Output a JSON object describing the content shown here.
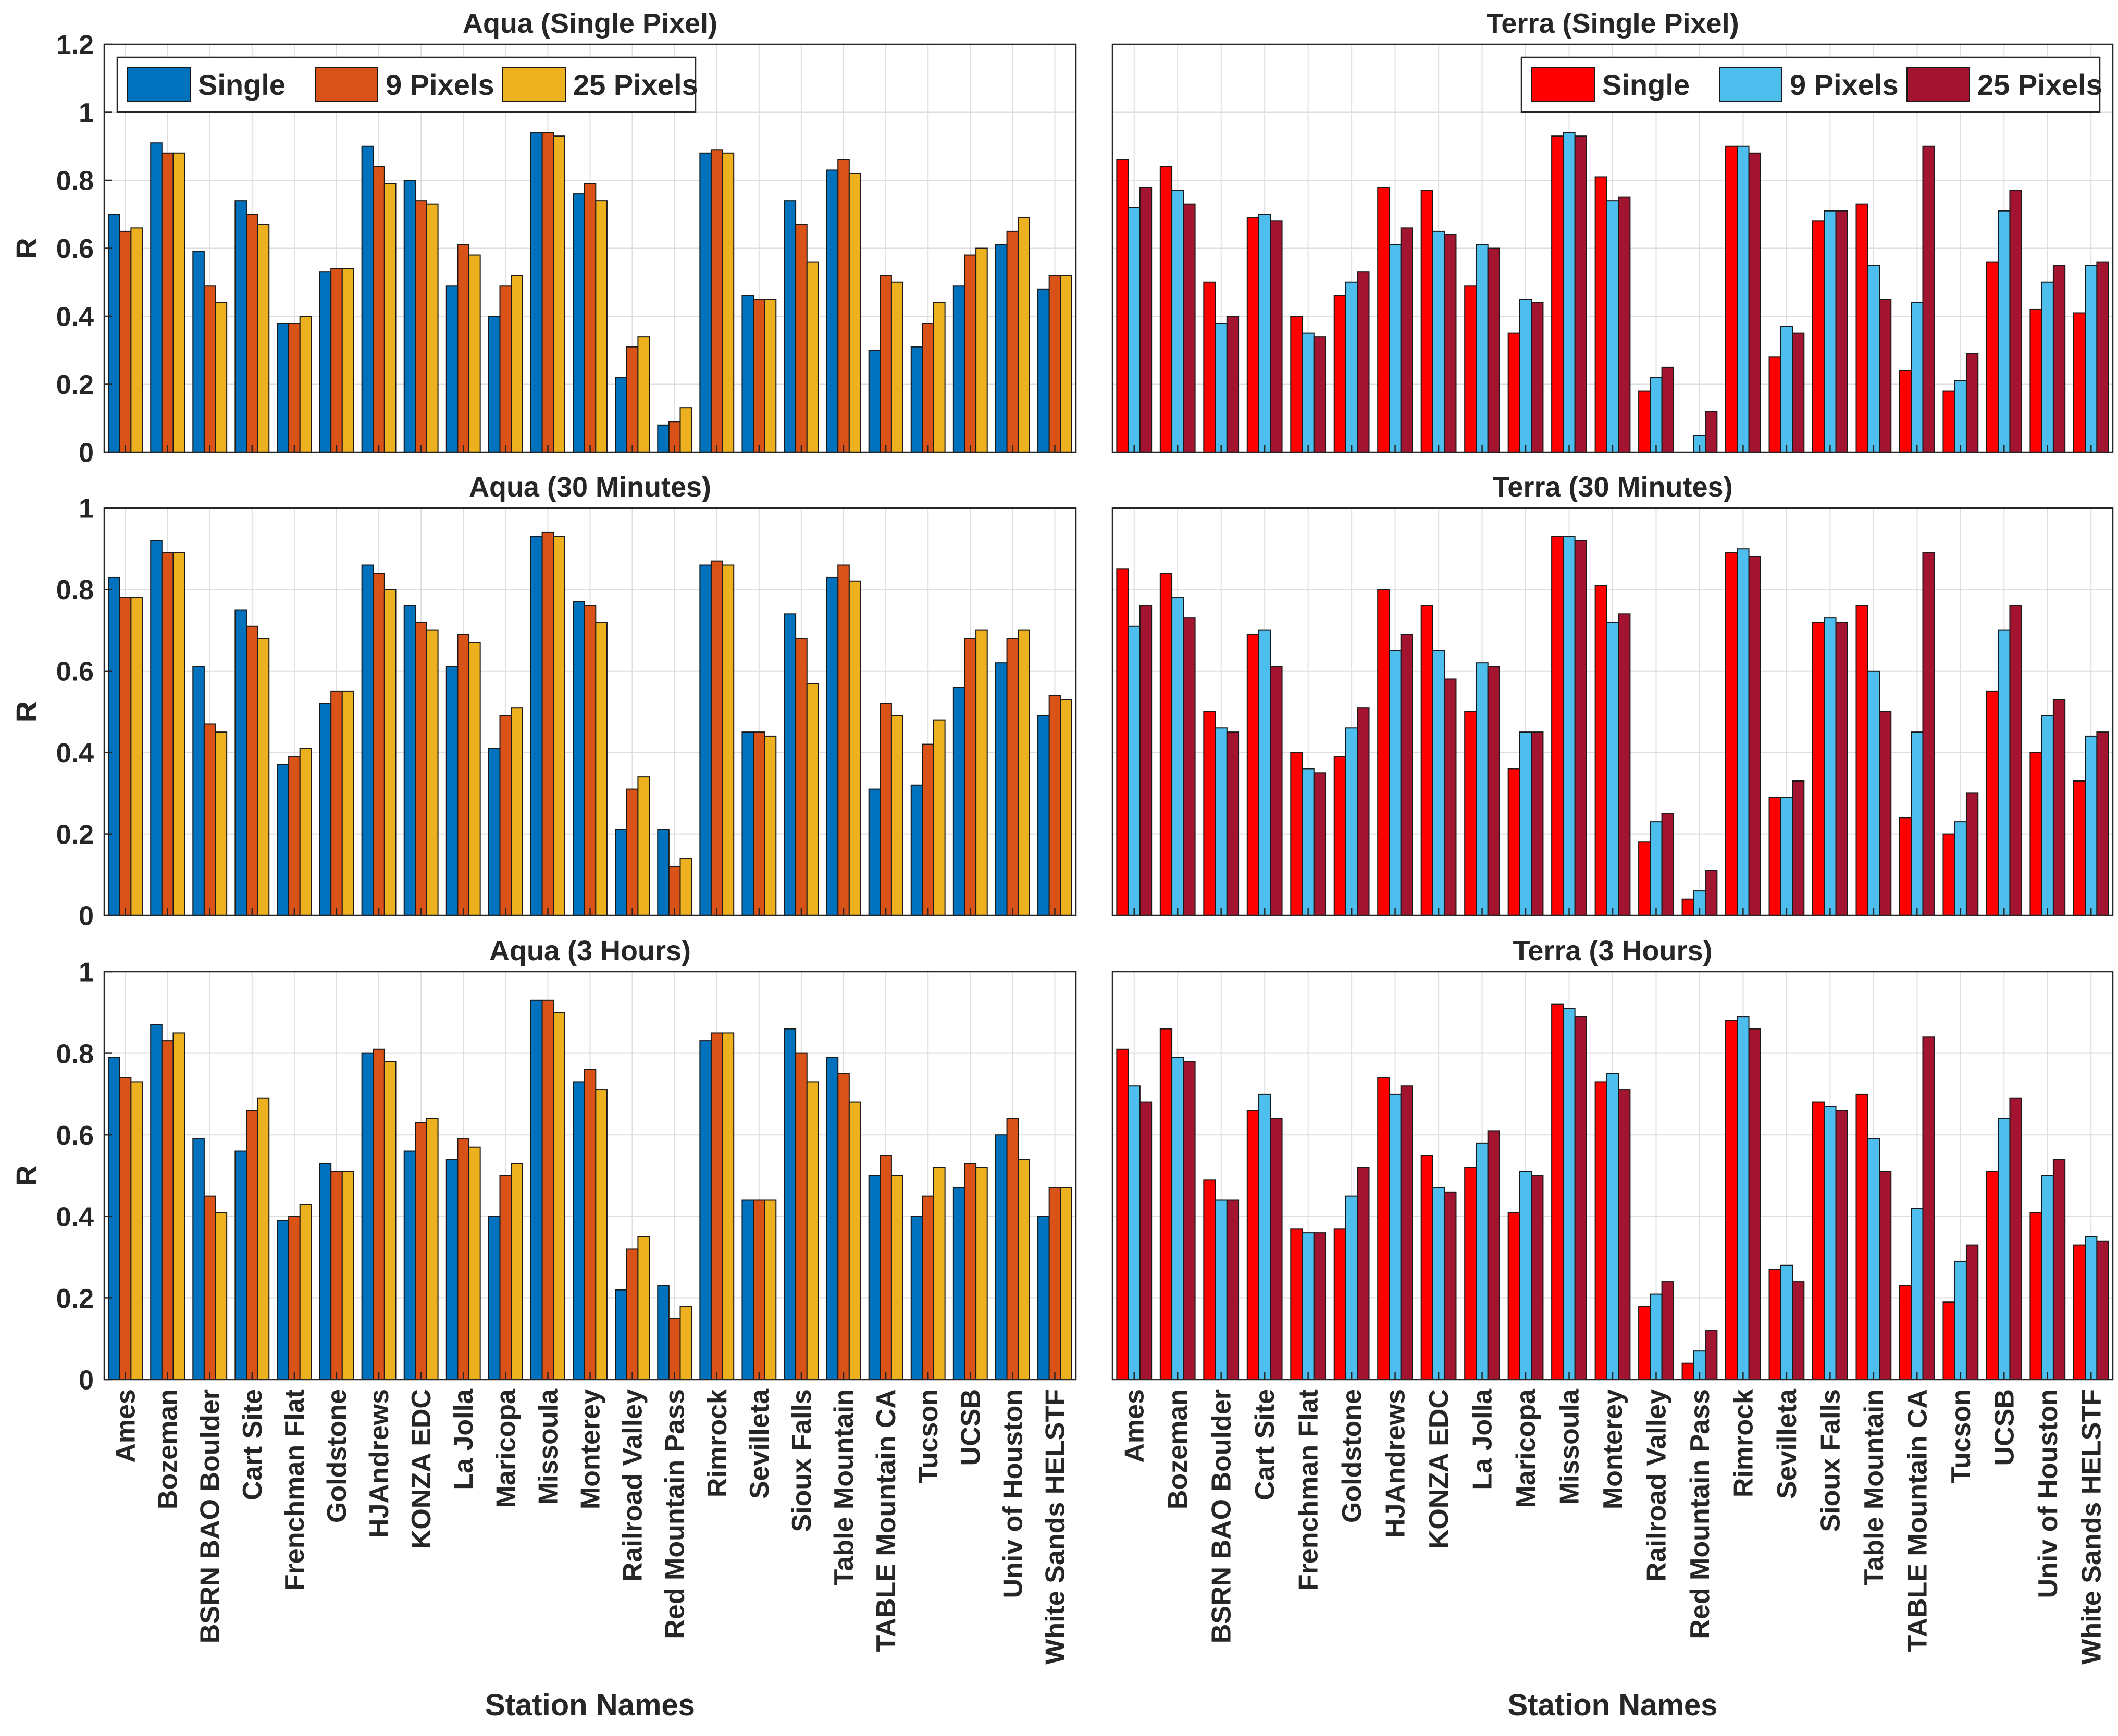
{
  "stations": [
    "Ames",
    "Bozeman",
    "BSRN BAO Boulder",
    "Cart Site",
    "Frenchman Flat",
    "Goldstone",
    "HJAndrews",
    "KONZA EDC",
    "La Jolla",
    "Maricopa",
    "Missoula",
    "Monterey",
    "Railroad Valley",
    "Red Mountain Pass",
    "Rimrock",
    "Sevilleta",
    "Sioux Falls",
    "Table Mountain",
    "TABLE Mountain CA",
    "Tucson",
    "UCSB",
    "Univ of Houston",
    "White Sands HELSTF"
  ],
  "x_axis_label": "Station Names",
  "y_axis_label": "R",
  "chart_data": [
    {
      "type": "bar",
      "title": "Aqua (Single Pixel)",
      "ylabel": "R",
      "xlabel": "",
      "ylim": [
        0,
        1.2
      ],
      "yticks": [
        0,
        0.2,
        0.4,
        0.6,
        0.8,
        1,
        1.2
      ],
      "grid": true,
      "legend": "top-left",
      "categories": [
        "Ames",
        "Bozeman",
        "BSRN BAO Boulder",
        "Cart Site",
        "Frenchman Flat",
        "Goldstone",
        "HJAndrews",
        "KONZA EDC",
        "La Jolla",
        "Maricopa",
        "Missoula",
        "Monterey",
        "Railroad Valley",
        "Red Mountain Pass",
        "Rimrock",
        "Sevilleta",
        "Sioux Falls",
        "Table Mountain",
        "TABLE Mountain CA",
        "Tucson",
        "UCSB",
        "Univ of Houston",
        "White Sands HELSTF"
      ],
      "series": [
        {
          "name": "Single",
          "color": "#0072BD",
          "values": [
            0.7,
            0.91,
            0.59,
            0.74,
            0.38,
            0.53,
            0.9,
            0.8,
            0.49,
            0.4,
            0.94,
            0.76,
            0.22,
            0.08,
            0.88,
            0.46,
            0.74,
            0.83,
            0.3,
            0.31,
            0.49,
            0.61,
            0.48
          ]
        },
        {
          "name": "9 Pixels",
          "color": "#D95319",
          "values": [
            0.65,
            0.88,
            0.49,
            0.7,
            0.38,
            0.54,
            0.84,
            0.74,
            0.61,
            0.49,
            0.94,
            0.79,
            0.31,
            0.09,
            0.89,
            0.45,
            0.67,
            0.86,
            0.52,
            0.38,
            0.58,
            0.65,
            0.52
          ]
        },
        {
          "name": "25 Pixels",
          "color": "#EDB120",
          "values": [
            0.66,
            0.88,
            0.44,
            0.67,
            0.4,
            0.54,
            0.79,
            0.73,
            0.58,
            0.52,
            0.93,
            0.74,
            0.34,
            0.13,
            0.88,
            0.45,
            0.56,
            0.82,
            0.5,
            0.44,
            0.6,
            0.69,
            0.52
          ]
        }
      ]
    },
    {
      "type": "bar",
      "title": "Terra (Single Pixel)",
      "ylabel": "",
      "xlabel": "",
      "ylim": [
        0,
        1.2
      ],
      "yticks": [],
      "grid": true,
      "legend": "top-right",
      "categories": [
        "Ames",
        "Bozeman",
        "BSRN BAO Boulder",
        "Cart Site",
        "Frenchman Flat",
        "Goldstone",
        "HJAndrews",
        "KONZA EDC",
        "La Jolla",
        "Maricopa",
        "Missoula",
        "Monterey",
        "Railroad Valley",
        "Red Mountain Pass",
        "Rimrock",
        "Sevilleta",
        "Sioux Falls",
        "Table Mountain",
        "TABLE Mountain CA",
        "Tucson",
        "UCSB",
        "Univ of Houston",
        "White Sands HELSTF"
      ],
      "series": [
        {
          "name": "Single",
          "color": "#FF0000",
          "values": [
            0.86,
            0.84,
            0.5,
            0.69,
            0.4,
            0.46,
            0.78,
            0.77,
            0.49,
            0.35,
            0.93,
            0.81,
            0.18,
            0.0,
            0.9,
            0.28,
            0.68,
            0.73,
            0.24,
            0.18,
            0.56,
            0.42,
            0.41
          ]
        },
        {
          "name": "9 Pixels",
          "color": "#4DBEEE",
          "values": [
            0.72,
            0.77,
            0.38,
            0.7,
            0.35,
            0.5,
            0.61,
            0.65,
            0.61,
            0.45,
            0.94,
            0.74,
            0.22,
            0.05,
            0.9,
            0.37,
            0.71,
            0.55,
            0.44,
            0.21,
            0.71,
            0.5,
            0.55
          ]
        },
        {
          "name": "25 Pixels",
          "color": "#A2142F",
          "values": [
            0.78,
            0.73,
            0.4,
            0.68,
            0.34,
            0.53,
            0.66,
            0.64,
            0.6,
            0.44,
            0.93,
            0.75,
            0.25,
            0.12,
            0.88,
            0.35,
            0.71,
            0.45,
            0.9,
            0.29,
            0.77,
            0.55,
            0.56
          ]
        }
      ]
    },
    {
      "type": "bar",
      "title": "Aqua (30 Minutes)",
      "ylabel": "R",
      "xlabel": "",
      "ylim": [
        0,
        1
      ],
      "yticks": [
        0,
        0.2,
        0.4,
        0.6,
        0.8,
        1
      ],
      "grid": true,
      "categories": [
        "Ames",
        "Bozeman",
        "BSRN BAO Boulder",
        "Cart Site",
        "Frenchman Flat",
        "Goldstone",
        "HJAndrews",
        "KONZA EDC",
        "La Jolla",
        "Maricopa",
        "Missoula",
        "Monterey",
        "Railroad Valley",
        "Red Mountain Pass",
        "Rimrock",
        "Sevilleta",
        "Sioux Falls",
        "Table Mountain",
        "TABLE Mountain CA",
        "Tucson",
        "UCSB",
        "Univ of Houston",
        "White Sands HELSTF"
      ],
      "series": [
        {
          "name": "Single",
          "color": "#0072BD",
          "values": [
            0.83,
            0.92,
            0.61,
            0.75,
            0.37,
            0.52,
            0.86,
            0.76,
            0.61,
            0.41,
            0.93,
            0.77,
            0.21,
            0.21,
            0.86,
            0.45,
            0.74,
            0.83,
            0.31,
            0.32,
            0.56,
            0.62,
            0.49
          ]
        },
        {
          "name": "9 Pixels",
          "color": "#D95319",
          "values": [
            0.78,
            0.89,
            0.47,
            0.71,
            0.39,
            0.55,
            0.84,
            0.72,
            0.69,
            0.49,
            0.94,
            0.76,
            0.31,
            0.12,
            0.87,
            0.45,
            0.68,
            0.86,
            0.52,
            0.42,
            0.68,
            0.68,
            0.54
          ]
        },
        {
          "name": "25 Pixels",
          "color": "#EDB120",
          "values": [
            0.78,
            0.89,
            0.45,
            0.68,
            0.41,
            0.55,
            0.8,
            0.7,
            0.67,
            0.51,
            0.93,
            0.72,
            0.34,
            0.14,
            0.86,
            0.44,
            0.57,
            0.82,
            0.49,
            0.48,
            0.7,
            0.7,
            0.53
          ]
        }
      ]
    },
    {
      "type": "bar",
      "title": "Terra (30 Minutes)",
      "ylabel": "",
      "xlabel": "",
      "ylim": [
        0,
        1
      ],
      "yticks": [],
      "grid": true,
      "categories": [
        "Ames",
        "Bozeman",
        "BSRN BAO Boulder",
        "Cart Site",
        "Frenchman Flat",
        "Goldstone",
        "HJAndrews",
        "KONZA EDC",
        "La Jolla",
        "Maricopa",
        "Missoula",
        "Monterey",
        "Railroad Valley",
        "Red Mountain Pass",
        "Rimrock",
        "Sevilleta",
        "Sioux Falls",
        "Table Mountain",
        "TABLE Mountain CA",
        "Tucson",
        "UCSB",
        "Univ of Houston",
        "White Sands HELSTF"
      ],
      "series": [
        {
          "name": "Single",
          "color": "#FF0000",
          "values": [
            0.85,
            0.84,
            0.5,
            0.69,
            0.4,
            0.39,
            0.8,
            0.76,
            0.5,
            0.36,
            0.93,
            0.81,
            0.18,
            0.04,
            0.89,
            0.29,
            0.72,
            0.76,
            0.24,
            0.2,
            0.55,
            0.4,
            0.33
          ]
        },
        {
          "name": "9 Pixels",
          "color": "#4DBEEE",
          "values": [
            0.71,
            0.78,
            0.46,
            0.7,
            0.36,
            0.46,
            0.65,
            0.65,
            0.62,
            0.45,
            0.93,
            0.72,
            0.23,
            0.06,
            0.9,
            0.29,
            0.73,
            0.6,
            0.45,
            0.23,
            0.7,
            0.49,
            0.44
          ]
        },
        {
          "name": "25 Pixels",
          "color": "#A2142F",
          "values": [
            0.76,
            0.73,
            0.45,
            0.61,
            0.35,
            0.51,
            0.69,
            0.58,
            0.61,
            0.45,
            0.92,
            0.74,
            0.25,
            0.11,
            0.88,
            0.33,
            0.72,
            0.5,
            0.89,
            0.3,
            0.76,
            0.53,
            0.45
          ]
        }
      ]
    },
    {
      "type": "bar",
      "title": "Aqua (3 Hours)",
      "ylabel": "R",
      "xlabel": "Station Names",
      "ylim": [
        0,
        1
      ],
      "yticks": [
        0,
        0.2,
        0.4,
        0.6,
        0.8,
        1
      ],
      "grid": true,
      "categories": [
        "Ames",
        "Bozeman",
        "BSRN BAO Boulder",
        "Cart Site",
        "Frenchman Flat",
        "Goldstone",
        "HJAndrews",
        "KONZA EDC",
        "La Jolla",
        "Maricopa",
        "Missoula",
        "Monterey",
        "Railroad Valley",
        "Red Mountain Pass",
        "Rimrock",
        "Sevilleta",
        "Sioux Falls",
        "Table Mountain",
        "TABLE Mountain CA",
        "Tucson",
        "UCSB",
        "Univ of Houston",
        "White Sands HELSTF"
      ],
      "series": [
        {
          "name": "Single",
          "color": "#0072BD",
          "values": [
            0.79,
            0.87,
            0.59,
            0.56,
            0.39,
            0.53,
            0.8,
            0.56,
            0.54,
            0.4,
            0.93,
            0.73,
            0.22,
            0.23,
            0.83,
            0.44,
            0.86,
            0.79,
            0.5,
            0.4,
            0.47,
            0.6,
            0.4
          ]
        },
        {
          "name": "9 Pixels",
          "color": "#D95319",
          "values": [
            0.74,
            0.83,
            0.45,
            0.66,
            0.4,
            0.51,
            0.81,
            0.63,
            0.59,
            0.5,
            0.93,
            0.76,
            0.32,
            0.15,
            0.85,
            0.44,
            0.8,
            0.75,
            0.55,
            0.45,
            0.53,
            0.64,
            0.47
          ]
        },
        {
          "name": "25 Pixels",
          "color": "#EDB120",
          "values": [
            0.73,
            0.85,
            0.41,
            0.69,
            0.43,
            0.51,
            0.78,
            0.64,
            0.57,
            0.53,
            0.9,
            0.71,
            0.35,
            0.18,
            0.85,
            0.44,
            0.73,
            0.68,
            0.5,
            0.52,
            0.52,
            0.54,
            0.47
          ]
        }
      ]
    },
    {
      "type": "bar",
      "title": "Terra (3 Hours)",
      "ylabel": "",
      "xlabel": "Station Names",
      "ylim": [
        0,
        1
      ],
      "yticks": [],
      "grid": true,
      "categories": [
        "Ames",
        "Bozeman",
        "BSRN BAO Boulder",
        "Cart Site",
        "Frenchman Flat",
        "Goldstone",
        "HJAndrews",
        "KONZA EDC",
        "La Jolla",
        "Maricopa",
        "Missoula",
        "Monterey",
        "Railroad Valley",
        "Red Mountain Pass",
        "Rimrock",
        "Sevilleta",
        "Sioux Falls",
        "Table Mountain",
        "TABLE Mountain CA",
        "Tucson",
        "UCSB",
        "Univ of Houston",
        "White Sands HELSTF"
      ],
      "series": [
        {
          "name": "Single",
          "color": "#FF0000",
          "values": [
            0.81,
            0.86,
            0.49,
            0.66,
            0.37,
            0.37,
            0.74,
            0.55,
            0.52,
            0.41,
            0.92,
            0.73,
            0.18,
            0.04,
            0.88,
            0.27,
            0.68,
            0.7,
            0.23,
            0.19,
            0.51,
            0.41,
            0.33
          ]
        },
        {
          "name": "9 Pixels",
          "color": "#4DBEEE",
          "values": [
            0.72,
            0.79,
            0.44,
            0.7,
            0.36,
            0.45,
            0.7,
            0.47,
            0.58,
            0.51,
            0.91,
            0.75,
            0.21,
            0.07,
            0.89,
            0.28,
            0.67,
            0.59,
            0.42,
            0.29,
            0.64,
            0.5,
            0.35
          ]
        },
        {
          "name": "25 Pixels",
          "color": "#A2142F",
          "values": [
            0.68,
            0.78,
            0.44,
            0.64,
            0.36,
            0.52,
            0.72,
            0.46,
            0.61,
            0.5,
            0.89,
            0.71,
            0.24,
            0.12,
            0.86,
            0.24,
            0.66,
            0.51,
            0.84,
            0.33,
            0.69,
            0.54,
            0.34
          ]
        }
      ]
    }
  ]
}
